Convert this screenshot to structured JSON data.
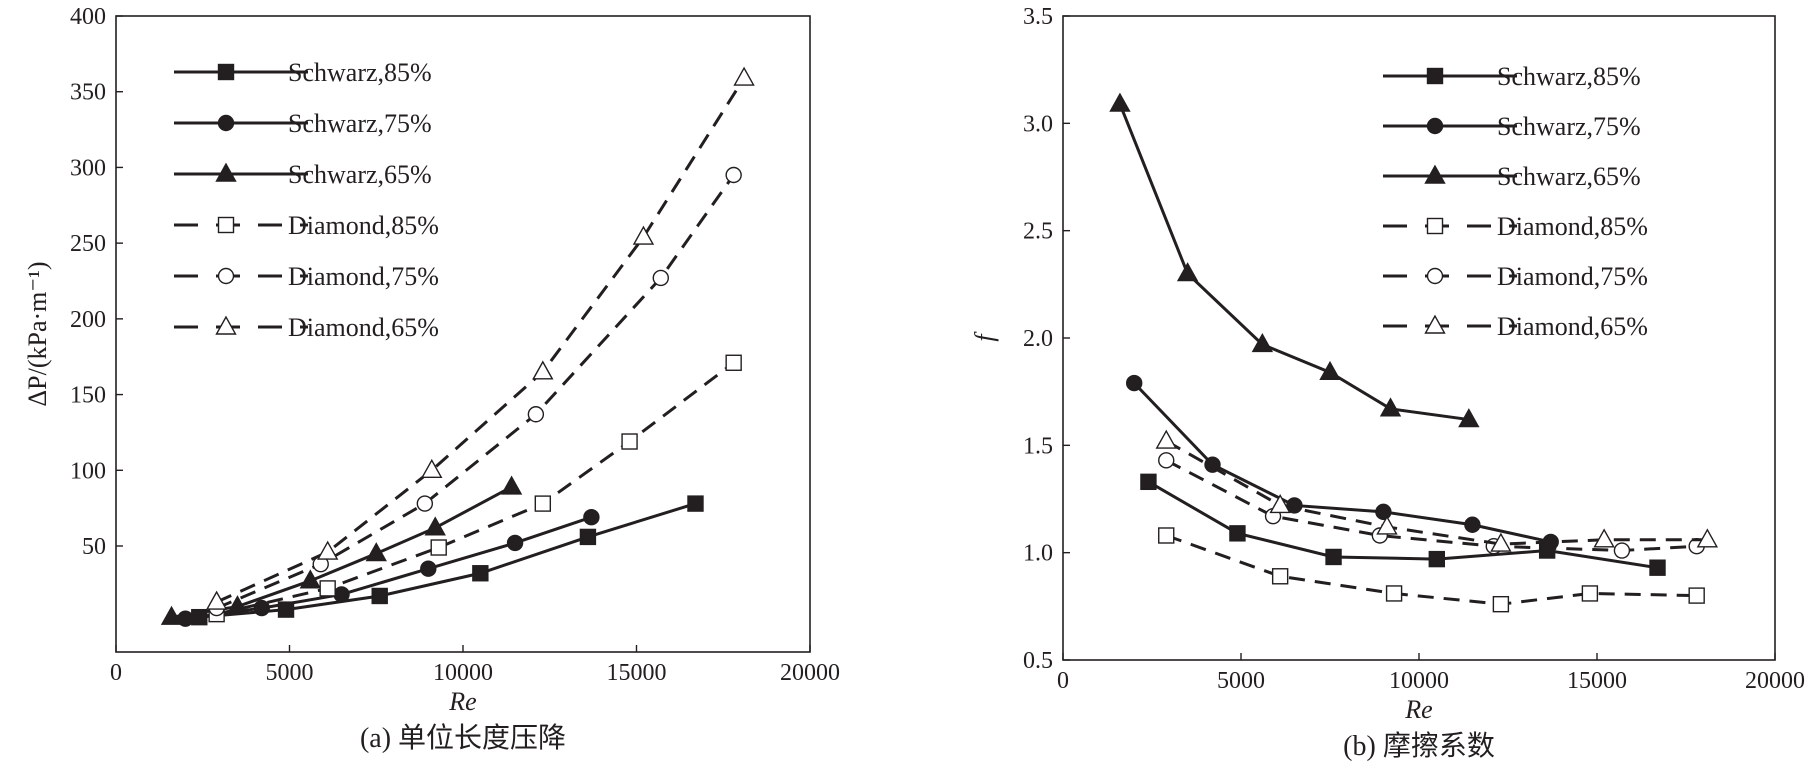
{
  "chart_data": [
    {
      "type": "line",
      "caption": "(a) 单位长度压降",
      "xlabel": "Re",
      "ylabel": "ΔP/(kPa·m⁻¹)",
      "xlim": [
        0,
        20000
      ],
      "ylim": [
        -20,
        400
      ],
      "xticks": [
        "0",
        "5000",
        "10000",
        "15000",
        "20000"
      ],
      "yticks": [
        "50",
        "100",
        "150",
        "200",
        "250",
        "300",
        "350",
        "400"
      ],
      "legend_position": "top-left",
      "series": [
        {
          "name": "Schwarz,85%",
          "style": "solid",
          "marker": "square",
          "filled": true,
          "x": [
            2400,
            4900,
            7600,
            10500,
            13600,
            16700
          ],
          "y": [
            3,
            8,
            17,
            32,
            56,
            78
          ]
        },
        {
          "name": "Schwarz,75%",
          "style": "solid",
          "marker": "circle",
          "filled": true,
          "x": [
            2000,
            4200,
            6500,
            9000,
            11500,
            13700
          ],
          "y": [
            2,
            9,
            18,
            35,
            52,
            69
          ]
        },
        {
          "name": "Schwarz,65%",
          "style": "solid",
          "marker": "triangle",
          "filled": true,
          "x": [
            1600,
            3500,
            5600,
            7500,
            9200,
            11400
          ],
          "y": [
            3,
            10,
            27,
            45,
            62,
            89
          ]
        },
        {
          "name": "Diamond,85%",
          "style": "dashed",
          "marker": "square",
          "filled": false,
          "x": [
            2900,
            6100,
            9300,
            12300,
            14800,
            17800
          ],
          "y": [
            5,
            22,
            49,
            78,
            119,
            171
          ]
        },
        {
          "name": "Diamond,75%",
          "style": "dashed",
          "marker": "circle",
          "filled": false,
          "x": [
            2900,
            5900,
            8900,
            12100,
            15700,
            17800
          ],
          "y": [
            9,
            38,
            78,
            137,
            227,
            295
          ]
        },
        {
          "name": "Diamond,65%",
          "style": "dashed",
          "marker": "triangle",
          "filled": false,
          "x": [
            2900,
            6100,
            9100,
            12300,
            15200,
            18100
          ],
          "y": [
            13,
            46,
            100,
            165,
            254,
            359
          ]
        }
      ]
    },
    {
      "type": "line",
      "caption": "(b) 摩擦系数",
      "xlabel": "Re",
      "ylabel": "f",
      "xlim": [
        0,
        20000
      ],
      "ylim": [
        0.5,
        3.5
      ],
      "xticks": [
        "0",
        "5000",
        "10000",
        "15000",
        "20000"
      ],
      "yticks": [
        "0.5",
        "1.0",
        "1.5",
        "2.0",
        "2.5",
        "3.0",
        "3.5"
      ],
      "legend_position": "top-right",
      "series": [
        {
          "name": "Schwarz,85%",
          "style": "solid",
          "marker": "square",
          "filled": true,
          "x": [
            2400,
            4900,
            7600,
            10500,
            13600,
            16700
          ],
          "y": [
            1.33,
            1.09,
            0.98,
            0.97,
            1.01,
            0.93
          ]
        },
        {
          "name": "Schwarz,75%",
          "style": "solid",
          "marker": "circle",
          "filled": true,
          "x": [
            2000,
            4200,
            6500,
            9000,
            11500,
            13700
          ],
          "y": [
            1.79,
            1.41,
            1.22,
            1.19,
            1.13,
            1.05
          ]
        },
        {
          "name": "Schwarz,65%",
          "style": "solid",
          "marker": "triangle",
          "filled": true,
          "x": [
            1600,
            3500,
            5600,
            7500,
            9200,
            11400
          ],
          "y": [
            3.09,
            2.3,
            1.97,
            1.84,
            1.67,
            1.62
          ]
        },
        {
          "name": "Diamond,85%",
          "style": "dashed",
          "marker": "square",
          "filled": false,
          "x": [
            2900,
            6100,
            9300,
            12300,
            14800,
            17800
          ],
          "y": [
            1.08,
            0.89,
            0.81,
            0.76,
            0.81,
            0.8
          ]
        },
        {
          "name": "Diamond,75%",
          "style": "dashed",
          "marker": "circle",
          "filled": false,
          "x": [
            2900,
            5900,
            8900,
            12100,
            15700,
            17800
          ],
          "y": [
            1.43,
            1.17,
            1.08,
            1.03,
            1.01,
            1.03
          ]
        },
        {
          "name": "Diamond,65%",
          "style": "dashed",
          "marker": "triangle",
          "filled": false,
          "x": [
            2900,
            6100,
            9100,
            12300,
            15200,
            18100
          ],
          "y": [
            1.52,
            1.22,
            1.12,
            1.04,
            1.06,
            1.06
          ]
        }
      ]
    }
  ]
}
